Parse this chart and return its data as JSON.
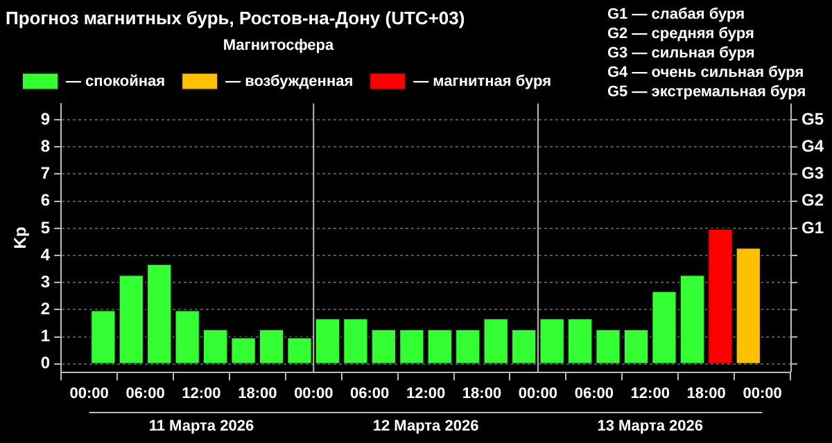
{
  "chart_data": {
    "type": "bar",
    "title": "Прогноз магнитных бурь, Ростов-на-Дону (UTC+03)",
    "legend_title": "Магнитосфера",
    "ylabel": "Kp",
    "x": [
      "2026-03-11T01:30",
      "2026-03-11T04:30",
      "2026-03-11T07:30",
      "2026-03-11T10:30",
      "2026-03-11T13:30",
      "2026-03-11T16:30",
      "2026-03-11T19:30",
      "2026-03-11T22:30",
      "2026-03-12T01:30",
      "2026-03-12T04:30",
      "2026-03-12T07:30",
      "2026-03-12T10:30",
      "2026-03-12T13:30",
      "2026-03-12T16:30",
      "2026-03-12T19:30",
      "2026-03-12T22:30",
      "2026-03-13T01:30",
      "2026-03-13T04:30",
      "2026-03-13T07:30",
      "2026-03-13T10:30",
      "2026-03-13T13:30",
      "2026-03-13T16:30",
      "2026-03-13T19:30",
      "2026-03-13T22:30"
    ],
    "series": [
      {
        "name": "— спокойная",
        "color": "#33ff33",
        "values": [
          2,
          3.3,
          3.7,
          2,
          1.3,
          1,
          1.3,
          1,
          1.7,
          1.7,
          1.3,
          1.3,
          1.3,
          1.3,
          1.7,
          1.3,
          1.7,
          1.7,
          1.3,
          1.3,
          2.7,
          3.3,
          null,
          null
        ]
      },
      {
        "name": "— возбужденная",
        "color": "#ffc000",
        "values": [
          null,
          null,
          null,
          null,
          null,
          null,
          null,
          null,
          null,
          null,
          null,
          null,
          null,
          null,
          null,
          null,
          null,
          null,
          null,
          null,
          null,
          null,
          null,
          4.3
        ]
      },
      {
        "name": "— магнитная буря",
        "color": "#ff0000",
        "values": [
          null,
          null,
          null,
          null,
          null,
          null,
          null,
          null,
          null,
          null,
          null,
          null,
          null,
          null,
          null,
          null,
          null,
          null,
          null,
          null,
          null,
          null,
          5,
          null
        ]
      }
    ],
    "xlim": [
      "2026-03-11T00:00",
      "2026-03-14T00:00"
    ],
    "xticks": [
      {
        "value": "2026-03-11T00:00",
        "label": "00:00"
      },
      {
        "value": "2026-03-11T06:00",
        "label": "06:00"
      },
      {
        "value": "2026-03-11T12:00",
        "label": "12:00"
      },
      {
        "value": "2026-03-11T18:00",
        "label": "18:00"
      },
      {
        "value": "2026-03-12T00:00",
        "label": "00:00"
      },
      {
        "value": "2026-03-12T06:00",
        "label": "06:00"
      },
      {
        "value": "2026-03-12T12:00",
        "label": "12:00"
      },
      {
        "value": "2026-03-12T18:00",
        "label": "18:00"
      },
      {
        "value": "2026-03-13T00:00",
        "label": "00:00"
      },
      {
        "value": "2026-03-13T06:00",
        "label": "06:00"
      },
      {
        "value": "2026-03-13T12:00",
        "label": "12:00"
      },
      {
        "value": "2026-03-13T18:00",
        "label": "18:00"
      },
      {
        "value": "2026-03-14T00:00",
        "label": "00:00"
      }
    ],
    "ylim": [
      -0.3,
      9.6
    ],
    "yticks": [
      0,
      1,
      2,
      3,
      4,
      5,
      6,
      7,
      8,
      9
    ],
    "ref_lines": [
      {
        "axis": "x",
        "value": "2026-03-12T00:00",
        "color": "#bbbbbb"
      },
      {
        "axis": "x",
        "value": "2026-03-13T00:00",
        "color": "#bbbbbb"
      }
    ],
    "annotations": [
      "G1",
      "G2",
      "G3",
      "G4",
      "G5",
      "G1 — слабая буря",
      "G2 — средняя буря",
      "G3 — сильная буря",
      "G4 — очень сильная буря",
      "G5 — экстремальная буря",
      "11 Марта 2026",
      "12 Марта 2026",
      "13 Марта 2026"
    ],
    "grid": "y",
    "legend": "top left"
  }
}
